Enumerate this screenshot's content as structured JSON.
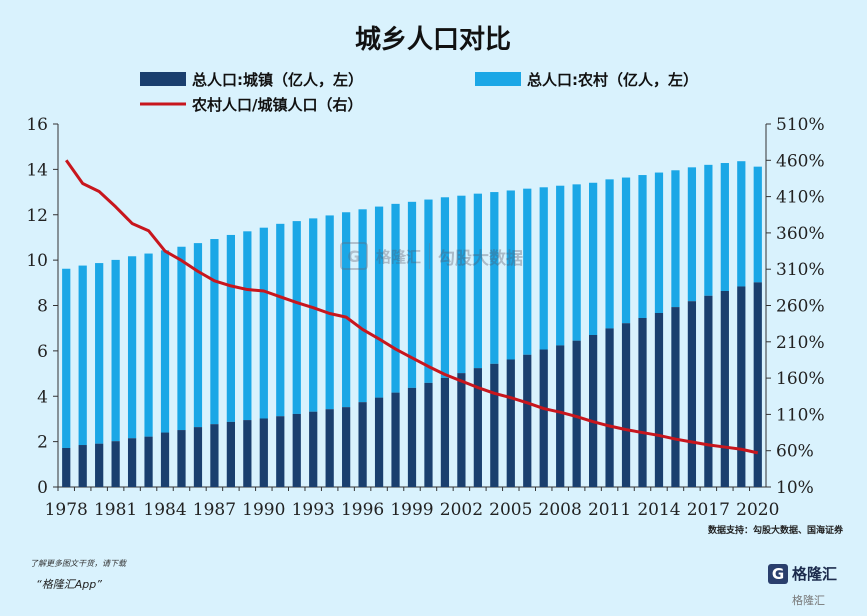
{
  "chart_data": {
    "type": "bar",
    "title": "城乡人口对比",
    "legend": [
      "总人口:城镇（亿人，左）",
      "总人口:农村（亿人，左）",
      "农村人口/城镇人口（右）"
    ],
    "years": [
      1978,
      1979,
      1980,
      1981,
      1982,
      1983,
      1984,
      1985,
      1986,
      1987,
      1988,
      1989,
      1990,
      1991,
      1992,
      1993,
      1994,
      1995,
      1996,
      1997,
      1998,
      1999,
      2000,
      2001,
      2002,
      2003,
      2004,
      2005,
      2006,
      2007,
      2008,
      2009,
      2010,
      2011,
      2012,
      2013,
      2014,
      2015,
      2016,
      2017,
      2018,
      2019,
      2020
    ],
    "x_tick_labels": [
      "1978",
      "1981",
      "1984",
      "1987",
      "1990",
      "1993",
      "1996",
      "1999",
      "2002",
      "2005",
      "2008",
      "2011",
      "2014",
      "2017",
      "2020"
    ],
    "series": [
      {
        "name": "总人口:城镇（亿人，左）",
        "axis": "left",
        "color": "#1a3f6e",
        "values": [
          1.72,
          1.85,
          1.91,
          2.02,
          2.15,
          2.22,
          2.4,
          2.51,
          2.64,
          2.77,
          2.87,
          2.95,
          3.02,
          3.12,
          3.22,
          3.32,
          3.43,
          3.52,
          3.74,
          3.94,
          4.16,
          4.37,
          4.59,
          4.81,
          5.02,
          5.24,
          5.43,
          5.62,
          5.83,
          6.06,
          6.24,
          6.45,
          6.7,
          6.99,
          7.22,
          7.45,
          7.67,
          7.93,
          8.19,
          8.43,
          8.64,
          8.84,
          9.02
        ]
      },
      {
        "name": "总人口:农村（亿人，左）",
        "axis": "left",
        "color": "#1ba7e6",
        "values": [
          7.9,
          7.91,
          7.96,
          7.99,
          8.02,
          8.07,
          8.03,
          8.08,
          8.11,
          8.16,
          8.24,
          8.32,
          8.41,
          8.48,
          8.5,
          8.52,
          8.54,
          8.59,
          8.5,
          8.42,
          8.32,
          8.2,
          8.08,
          7.96,
          7.82,
          7.69,
          7.57,
          7.45,
          7.32,
          7.15,
          7.04,
          6.89,
          6.71,
          6.57,
          6.42,
          6.3,
          6.19,
          6.03,
          5.9,
          5.77,
          5.64,
          5.52,
          5.1
        ]
      },
      {
        "name": "农村人口/城镇人口（右）",
        "axis": "right",
        "color": "#c8161d",
        "values": [
          460,
          428,
          417,
          396,
          373,
          363,
          335,
          322,
          307,
          294,
          287,
          282,
          280,
          272,
          264,
          257,
          249,
          244,
          227,
          214,
          200,
          188,
          176,
          165,
          156,
          147,
          139,
          133,
          126,
          118,
          113,
          107,
          100,
          94,
          89,
          85,
          81,
          76,
          72,
          68,
          65,
          62,
          57
        ]
      }
    ],
    "left_axis": {
      "min": 0,
      "max": 16,
      "ticks": [
        "0",
        "2",
        "4",
        "6",
        "8",
        "10",
        "12",
        "14",
        "16"
      ]
    },
    "right_axis": {
      "min": 10,
      "max": 510,
      "ticks": [
        "10%",
        "60%",
        "110%",
        "160%",
        "210%",
        "260%",
        "310%",
        "360%",
        "410%",
        "460%",
        "510%"
      ]
    },
    "stacked": true,
    "grid": false
  },
  "source": "数据支持：勾股大数据、国海证券",
  "footer": {
    "line1": "了解更多图文干货，请下载",
    "line2": "“格隆汇App”"
  },
  "brand": {
    "mark": "G",
    "name": "格隆汇",
    "bottom": "格隆汇"
  },
  "watermark": {
    "mark": "G",
    "text1": "格隆汇",
    "text2": "勾股大数据"
  }
}
